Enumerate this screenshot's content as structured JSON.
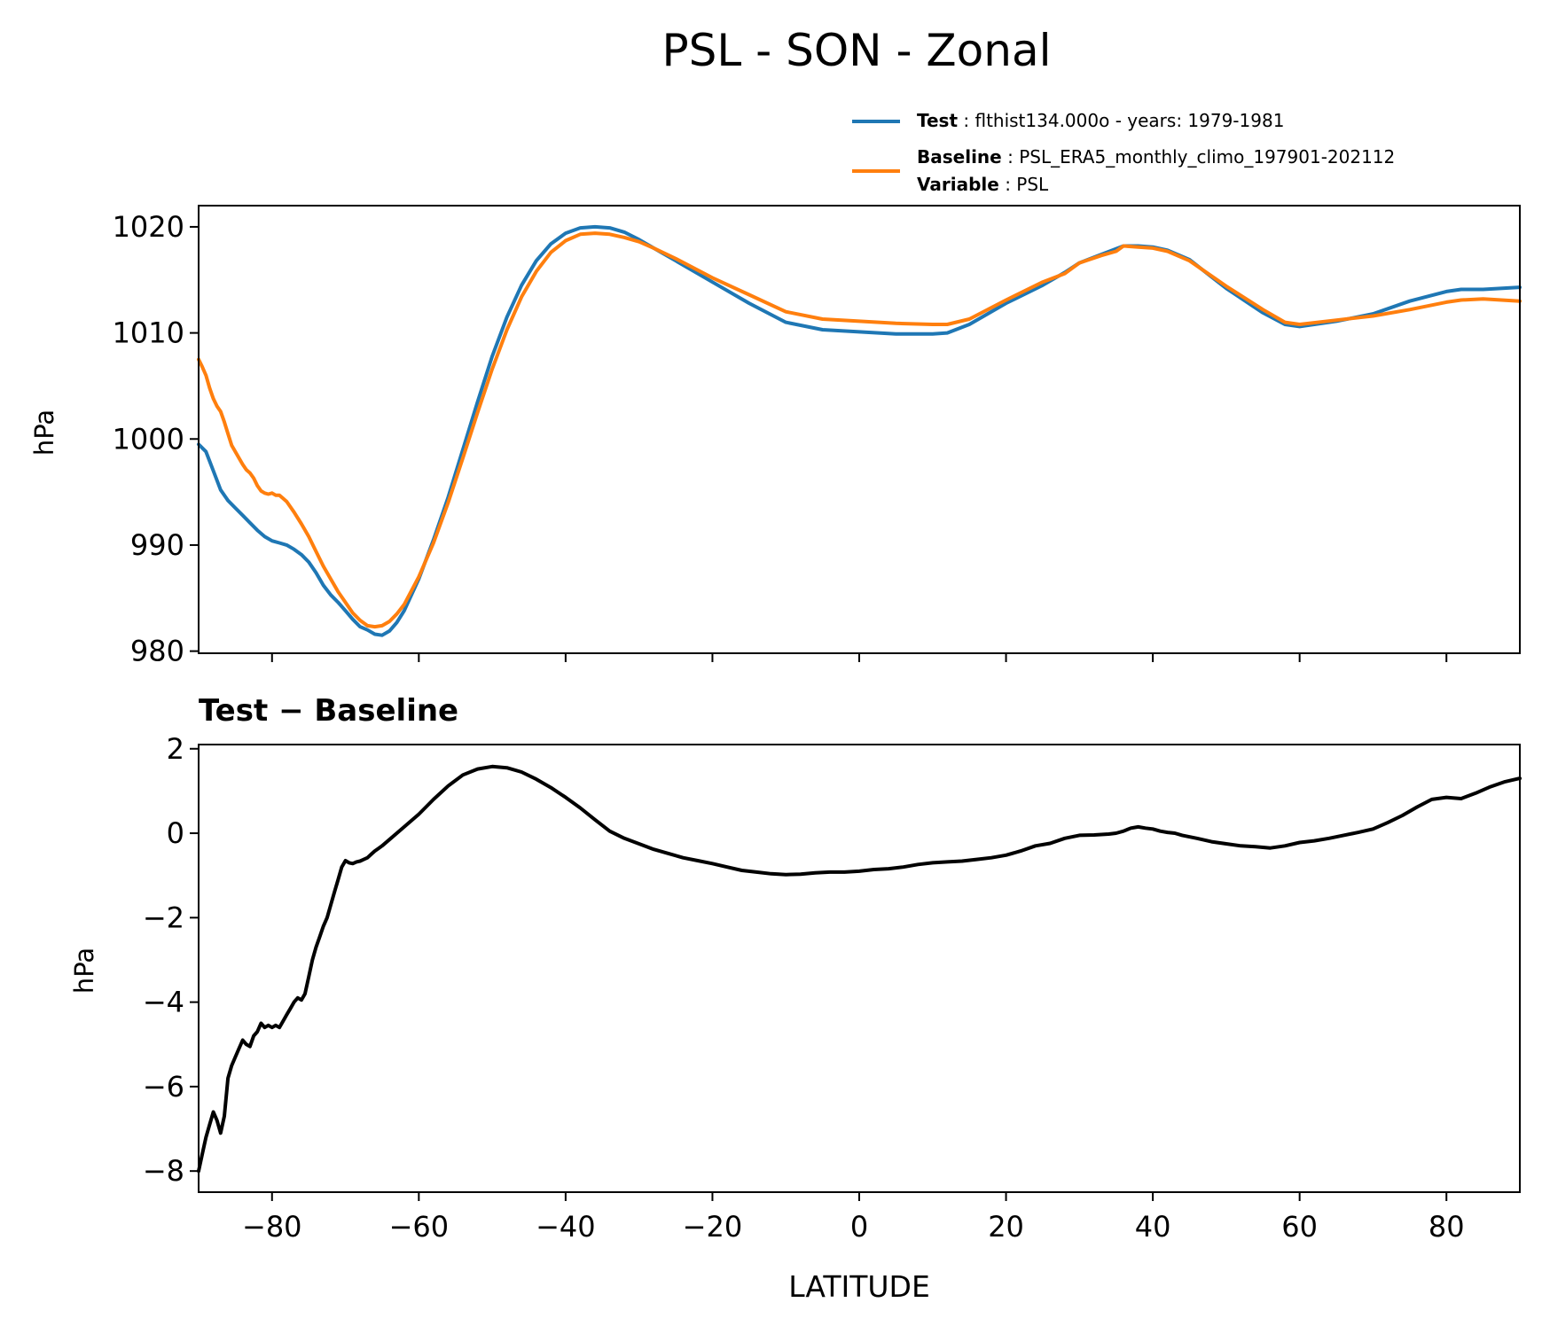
{
  "figure_title": "PSL - SON - Zonal",
  "legend": {
    "test_key": "Test",
    "test_value": "flthist134.000o - years: 1979-1981",
    "baseline_key": "Baseline",
    "baseline_value": "PSL_ERA5_monthly_climo_197901-202112",
    "variable_key": "Variable",
    "variable_value": "PSL"
  },
  "colors": {
    "test": "#1f77b4",
    "baseline": "#ff7f0e",
    "diff": "#000000"
  },
  "chart_data": [
    {
      "type": "line",
      "title": "PSL - SON - Zonal",
      "xlabel": "",
      "ylabel": "hPa",
      "xlim": [
        -90,
        90
      ],
      "ylim": [
        979.8,
        1022
      ],
      "x_ticks": [
        -80,
        -60,
        -40,
        -20,
        0,
        20,
        40,
        60,
        80
      ],
      "y_ticks": [
        980,
        990,
        1000,
        1010,
        1020
      ],
      "y_tick_labels": [
        "980",
        "990",
        "1000",
        "1010",
        "1020"
      ],
      "series": [
        {
          "name": "Test",
          "x": [
            -90,
            -89,
            -88,
            -87,
            -86,
            -85,
            -84,
            -83,
            -82,
            -81,
            -80,
            -79,
            -78,
            -77,
            -76,
            -75,
            -74,
            -73,
            -72,
            -71,
            -70,
            -69,
            -68,
            -67,
            -66,
            -65,
            -64,
            -63,
            -62,
            -60,
            -58,
            -56,
            -54,
            -52,
            -50,
            -48,
            -46,
            -44,
            -42,
            -40,
            -38,
            -36,
            -34,
            -32,
            -30,
            -28,
            -25,
            -20,
            -15,
            -10,
            -5,
            0,
            5,
            10,
            12,
            15,
            20,
            25,
            28,
            30,
            33,
            36,
            38,
            40,
            42,
            45,
            50,
            55,
            58,
            60,
            65,
            70,
            75,
            80,
            82,
            85,
            90
          ],
          "values": [
            999.5,
            998.8,
            997.0,
            995.2,
            994.2,
            993.5,
            992.8,
            992.1,
            991.4,
            990.8,
            990.4,
            990.2,
            990.0,
            989.6,
            989.1,
            988.4,
            987.4,
            986.2,
            985.3,
            984.6,
            983.8,
            983.0,
            982.3,
            982.0,
            981.6,
            981.5,
            981.9,
            982.7,
            983.8,
            986.8,
            990.5,
            994.5,
            999.0,
            1003.5,
            1007.8,
            1011.5,
            1014.5,
            1016.8,
            1018.4,
            1019.4,
            1019.9,
            1020.0,
            1019.9,
            1019.5,
            1018.8,
            1018.0,
            1016.8,
            1014.8,
            1012.8,
            1011.0,
            1010.3,
            1010.1,
            1009.9,
            1009.9,
            1010.0,
            1010.8,
            1012.8,
            1014.5,
            1015.7,
            1016.6,
            1017.4,
            1018.2,
            1018.2,
            1018.1,
            1017.8,
            1016.9,
            1014.2,
            1011.9,
            1010.8,
            1010.6,
            1011.1,
            1011.8,
            1013.0,
            1013.9,
            1014.1,
            1014.1,
            1014.3
          ]
        },
        {
          "name": "Baseline",
          "x": [
            -90,
            -89.5,
            -89,
            -88.5,
            -88,
            -87.5,
            -87,
            -86.5,
            -86,
            -85.5,
            -85,
            -84.5,
            -84,
            -83.5,
            -83,
            -82.5,
            -82,
            -81.5,
            -81,
            -80.5,
            -80,
            -79.5,
            -79,
            -78.5,
            -78,
            -77.5,
            -77,
            -76,
            -75,
            -74,
            -73,
            -72,
            -71,
            -70,
            -69,
            -68,
            -67,
            -66,
            -65,
            -64,
            -63,
            -62,
            -60,
            -58,
            -56,
            -54,
            -52,
            -50,
            -48,
            -46,
            -44,
            -42,
            -40,
            -38,
            -36,
            -34,
            -32,
            -30,
            -28,
            -25,
            -20,
            -15,
            -10,
            -5,
            0,
            5,
            10,
            12,
            15,
            20,
            25,
            28,
            30,
            33,
            35,
            36,
            38,
            40,
            42,
            45,
            50,
            55,
            58,
            60,
            65,
            70,
            75,
            80,
            82,
            85,
            90
          ],
          "values": [
            1007.5,
            1006.8,
            1006.0,
            1004.8,
            1003.8,
            1003.1,
            1002.6,
            1001.6,
            1000.5,
            999.4,
            998.8,
            998.2,
            997.6,
            997.1,
            996.8,
            996.3,
            995.6,
            995.1,
            994.9,
            994.8,
            994.9,
            994.7,
            994.7,
            994.4,
            994.1,
            993.6,
            993.1,
            992.0,
            990.8,
            989.4,
            988.0,
            986.8,
            985.6,
            984.6,
            983.6,
            982.9,
            982.4,
            982.3,
            982.4,
            982.8,
            983.5,
            984.4,
            987.0,
            990.2,
            994.0,
            998.2,
            1002.5,
            1006.6,
            1010.3,
            1013.4,
            1015.8,
            1017.6,
            1018.7,
            1019.3,
            1019.4,
            1019.3,
            1019.0,
            1018.6,
            1018.0,
            1017.0,
            1015.2,
            1013.6,
            1012.0,
            1011.3,
            1011.1,
            1010.9,
            1010.8,
            1010.8,
            1011.3,
            1013.1,
            1014.8,
            1015.6,
            1016.6,
            1017.3,
            1017.7,
            1018.2,
            1018.1,
            1018.0,
            1017.7,
            1016.8,
            1014.4,
            1012.2,
            1011.0,
            1010.8,
            1011.2,
            1011.6,
            1012.2,
            1012.9,
            1013.1,
            1013.2,
            1013.0
          ]
        }
      ]
    },
    {
      "type": "line",
      "title": "Test − Baseline",
      "xlabel": "LATITUDE",
      "ylabel": "hPa",
      "xlim": [
        -90,
        90
      ],
      "ylim": [
        -8.5,
        2.1
      ],
      "x_ticks": [
        -80,
        -60,
        -40,
        -20,
        0,
        20,
        40,
        60,
        80
      ],
      "x_tick_labels": [
        "−80",
        "−60",
        "−40",
        "−20",
        "0",
        "20",
        "40",
        "60",
        "80"
      ],
      "y_ticks": [
        -8,
        -6,
        -4,
        -2,
        0,
        2
      ],
      "y_tick_labels": [
        "−8",
        "−6",
        "−4",
        "−2",
        "0",
        "2"
      ],
      "series": [
        {
          "name": "Test − Baseline",
          "x": [
            -90,
            -89.5,
            -89,
            -88.5,
            -88,
            -87.5,
            -87,
            -86.5,
            -86,
            -85.5,
            -85,
            -84.5,
            -84,
            -83.5,
            -83,
            -82.5,
            -82,
            -81.5,
            -81,
            -80.5,
            -80,
            -79.5,
            -79,
            -78.5,
            -78,
            -77.5,
            -77,
            -76.5,
            -76,
            -75.5,
            -75,
            -74.5,
            -74,
            -73.5,
            -73,
            -72.5,
            -72,
            -71.5,
            -71,
            -70.5,
            -70,
            -69.5,
            -69,
            -68.5,
            -68,
            -67.5,
            -67,
            -66.5,
            -66,
            -65.5,
            -65,
            -64,
            -62,
            -60,
            -58,
            -56,
            -54,
            -52,
            -50,
            -48,
            -46,
            -44,
            -42,
            -40,
            -38,
            -36,
            -34,
            -32,
            -30,
            -28,
            -26,
            -24,
            -22,
            -20,
            -18,
            -16,
            -14,
            -12,
            -10,
            -8,
            -6,
            -4,
            -2,
            0,
            2,
            4,
            6,
            8,
            10,
            12,
            14,
            16,
            18,
            20,
            22,
            24,
            26,
            28,
            30,
            32,
            34,
            35,
            36,
            37,
            38,
            39,
            40,
            41,
            42,
            43,
            44,
            46,
            48,
            50,
            52,
            54,
            56,
            58,
            60,
            62,
            64,
            66,
            68,
            70,
            72,
            74,
            76,
            78,
            80,
            82,
            84,
            86,
            88,
            90
          ],
          "values": [
            -8.0,
            -7.6,
            -7.2,
            -6.9,
            -6.6,
            -6.8,
            -7.1,
            -6.7,
            -5.8,
            -5.5,
            -5.3,
            -5.1,
            -4.9,
            -5.0,
            -5.05,
            -4.8,
            -4.7,
            -4.5,
            -4.6,
            -4.55,
            -4.6,
            -4.55,
            -4.6,
            -4.45,
            -4.3,
            -4.15,
            -4.0,
            -3.9,
            -3.95,
            -3.8,
            -3.4,
            -3.0,
            -2.7,
            -2.45,
            -2.2,
            -2.0,
            -1.7,
            -1.4,
            -1.1,
            -0.8,
            -0.65,
            -0.7,
            -0.72,
            -0.68,
            -0.66,
            -0.62,
            -0.58,
            -0.5,
            -0.42,
            -0.36,
            -0.3,
            -0.15,
            0.15,
            0.45,
            0.8,
            1.12,
            1.38,
            1.52,
            1.58,
            1.55,
            1.45,
            1.28,
            1.08,
            0.85,
            0.6,
            0.32,
            0.05,
            -0.12,
            -0.25,
            -0.38,
            -0.48,
            -0.58,
            -0.65,
            -0.72,
            -0.8,
            -0.88,
            -0.92,
            -0.96,
            -0.98,
            -0.97,
            -0.94,
            -0.92,
            -0.92,
            -0.9,
            -0.86,
            -0.84,
            -0.8,
            -0.74,
            -0.7,
            -0.68,
            -0.66,
            -0.62,
            -0.58,
            -0.52,
            -0.42,
            -0.3,
            -0.24,
            -0.12,
            -0.05,
            -0.04,
            -0.02,
            0.0,
            0.05,
            0.12,
            0.15,
            0.12,
            0.1,
            0.05,
            0.02,
            0.0,
            -0.05,
            -0.12,
            -0.2,
            -0.25,
            -0.3,
            -0.32,
            -0.35,
            -0.3,
            -0.22,
            -0.18,
            -0.12,
            -0.05,
            0.02,
            0.1,
            0.25,
            0.42,
            0.62,
            0.8,
            0.85,
            0.82,
            0.95,
            1.1,
            1.22,
            1.3
          ]
        }
      ]
    }
  ]
}
